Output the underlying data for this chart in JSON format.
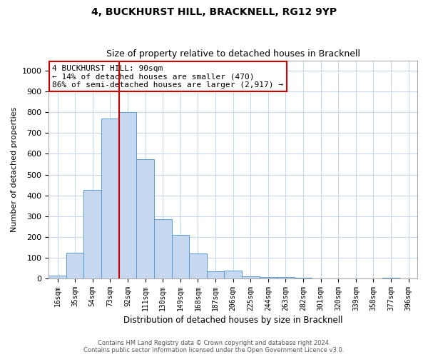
{
  "title1": "4, BUCKHURST HILL, BRACKNELL, RG12 9YP",
  "title2": "Size of property relative to detached houses in Bracknell",
  "xlabel": "Distribution of detached houses by size in Bracknell",
  "ylabel": "Number of detached properties",
  "categories": [
    "16sqm",
    "35sqm",
    "54sqm",
    "73sqm",
    "92sqm",
    "111sqm",
    "130sqm",
    "149sqm",
    "168sqm",
    "187sqm",
    "206sqm",
    "225sqm",
    "244sqm",
    "263sqm",
    "282sqm",
    "301sqm",
    "320sqm",
    "339sqm",
    "358sqm",
    "377sqm",
    "396sqm"
  ],
  "values": [
    15,
    125,
    425,
    770,
    800,
    575,
    285,
    210,
    120,
    35,
    38,
    10,
    8,
    8,
    5,
    0,
    0,
    0,
    0,
    5,
    0
  ],
  "bar_color": "#c5d8f0",
  "bar_edge_color": "#5b9bd5",
  "vline_x_index": 4,
  "vline_color": "#cc0000",
  "annotation_text": "4 BUCKHURST HILL: 90sqm\n← 14% of detached houses are smaller (470)\n86% of semi-detached houses are larger (2,917) →",
  "annotation_box_color": "#ffffff",
  "annotation_box_edge": "#cc0000",
  "ylim": [
    0,
    1050
  ],
  "yticks": [
    0,
    100,
    200,
    300,
    400,
    500,
    600,
    700,
    800,
    900,
    1000
  ],
  "footer1": "Contains HM Land Registry data © Crown copyright and database right 2024.",
  "footer2": "Contains public sector information licensed under the Open Government Licence v3.0.",
  "bg_color": "#ffffff",
  "grid_color": "#c8d8e8"
}
